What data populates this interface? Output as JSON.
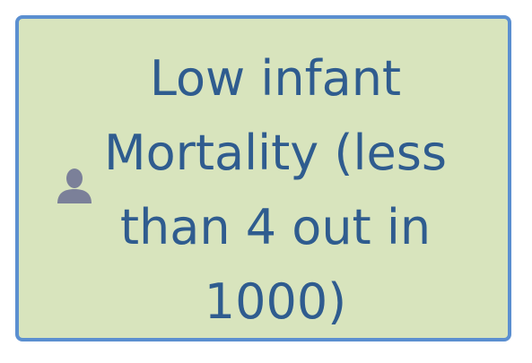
{
  "node": {
    "text": "Low infant Mortality (less than 4 out in 1000)",
    "icon": "person-icon",
    "colors": {
      "fill": "#d8e4bd",
      "border": "#5b8fd0",
      "text": "#2f5c8f",
      "icon": "#7b8099"
    }
  }
}
